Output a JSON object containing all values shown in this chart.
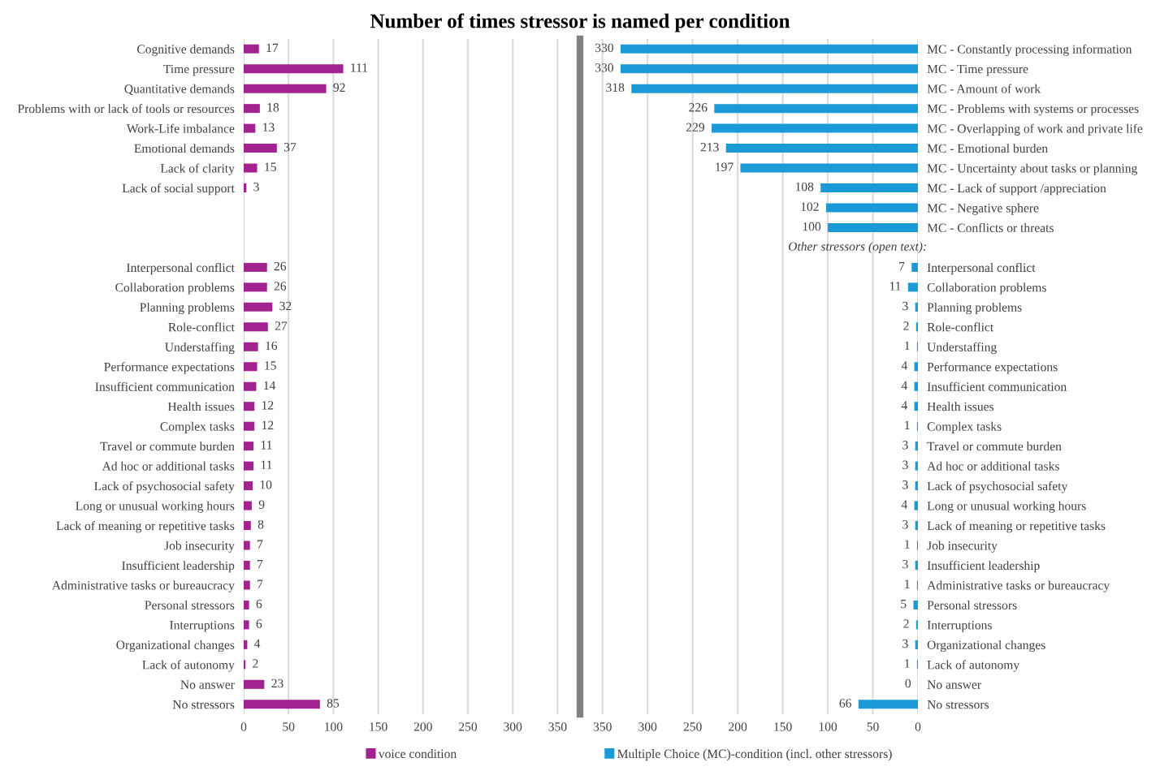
{
  "chart_data": [
    {
      "type": "bar",
      "orientation": "horizontal",
      "title": "Number of times stressor is named per condition",
      "categories": [
        "Cognitive demands",
        "Time pressure",
        "Quantitative demands",
        "Problems with or lack of tools or resources",
        "Work-Life imbalance",
        "Emotional demands",
        "Lack of clarity",
        "Lack of social support",
        null,
        null,
        null,
        "Interpersonal conflict",
        "Collaboration problems",
        "Planning problems",
        "Role-conflict",
        "Understaffing",
        "Performance expectations",
        "Insufficient communication",
        "Health issues",
        "Complex tasks",
        "Travel or commute burden",
        "Ad hoc or additional tasks",
        "Lack of psychosocial safety",
        "Long or unusual working hours",
        "Lack of meaning or repetitive tasks",
        "Job insecurity",
        "Insufficient leadership",
        "Administrative tasks or bureaucracy",
        "Personal stressors",
        "Interruptions",
        "Organizational changes",
        "Lack of autonomy",
        "No answer",
        "No stressors"
      ],
      "series": [
        {
          "name": "voice condition",
          "color": "#a2238f",
          "values": [
            17,
            111,
            92,
            18,
            13,
            37,
            15,
            3,
            null,
            null,
            null,
            26,
            26,
            32,
            27,
            16,
            15,
            14,
            12,
            12,
            11,
            11,
            10,
            9,
            8,
            7,
            7,
            7,
            6,
            6,
            4,
            2,
            23,
            85
          ]
        }
      ],
      "xlim": [
        0,
        375
      ],
      "xticks": [
        0,
        50,
        100,
        150,
        200,
        250,
        300,
        350
      ],
      "grid": "x",
      "legend": "bottom",
      "data_labels": true
    },
    {
      "type": "bar",
      "orientation": "horizontal",
      "categories": [
        "MC - Constantly processing information",
        "MC - Time pressure",
        "MC - Amount of work",
        "MC - Problems with systems or processes",
        "MC - Overlapping of work and private life",
        "MC - Emotional burden",
        "MC - Uncertainty about tasks or planning",
        "MC - Lack of support /appreciation",
        "MC - Negative sphere",
        "MC - Conflicts or threats",
        null,
        "Interpersonal conflict",
        "Collaboration problems",
        "Planning problems",
        "Role-conflict",
        "Understaffing",
        "Performance expectations",
        "Insufficient communication",
        "Health issues",
        "Complex tasks",
        "Travel or commute burden",
        "Ad hoc or additional tasks",
        "Lack of psychosocial safety",
        "Long or unusual working hours",
        "Lack of meaning or repetitive tasks",
        "Job insecurity",
        "Insufficient leadership",
        "Administrative tasks or bureaucracy",
        "Personal stressors",
        "Interruptions",
        "Organizational changes",
        "Lack of autonomy",
        "No answer",
        "No stressors"
      ],
      "series": [
        {
          "name": "Multiple Choice (MC)-condition (incl. other stressors)",
          "color": "#1a9ad6",
          "values": [
            330,
            330,
            318,
            226,
            229,
            213,
            197,
            108,
            102,
            100,
            null,
            7,
            11,
            3,
            2,
            1,
            4,
            4,
            4,
            1,
            3,
            3,
            3,
            4,
            3,
            1,
            3,
            1,
            5,
            2,
            3,
            1,
            0,
            66
          ]
        }
      ],
      "annotations": [
        "Other stressors (open text):"
      ],
      "xlim": [
        375,
        0
      ],
      "xticks": [
        350,
        300,
        250,
        200,
        150,
        100,
        50,
        0
      ],
      "grid": "x",
      "legend": "bottom",
      "data_labels": true
    }
  ]
}
